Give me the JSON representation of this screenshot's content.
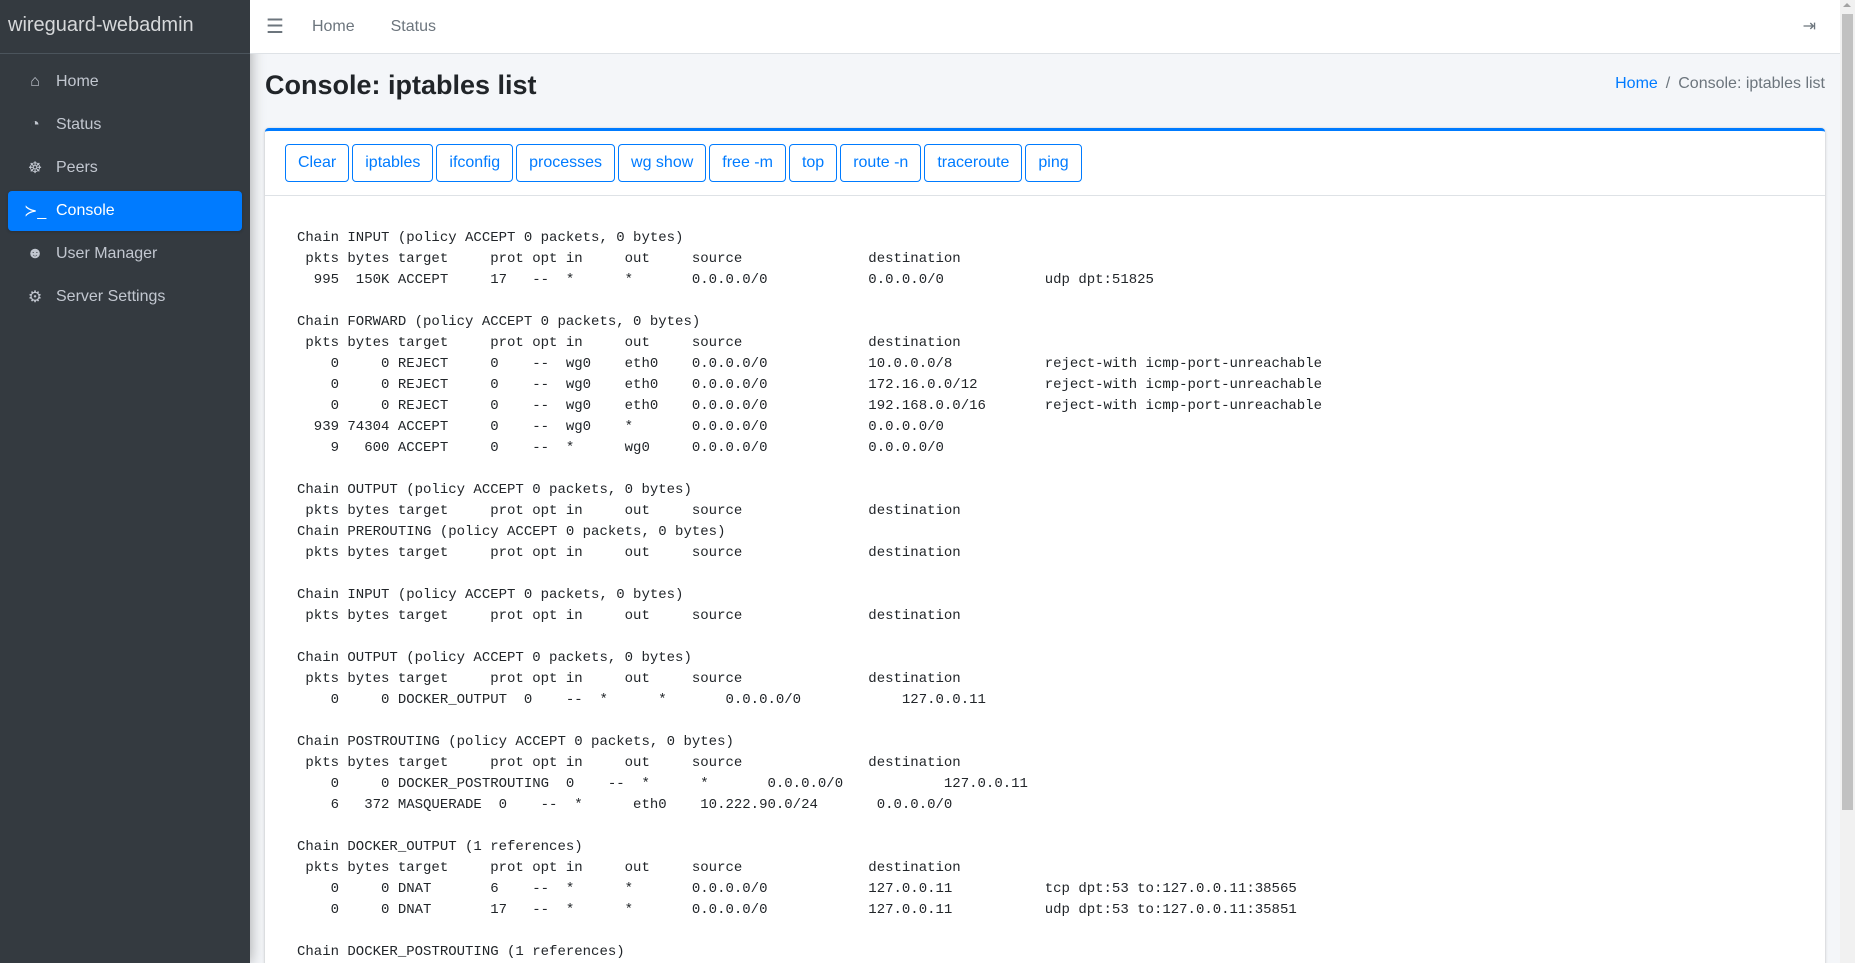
{
  "brand": "wireguard-webadmin",
  "sidebar": {
    "items": [
      {
        "label": "Home",
        "icon": "home-icon",
        "glyph": "⌂"
      },
      {
        "label": "Status",
        "icon": "tachometer-icon",
        "glyph": "◔"
      },
      {
        "label": "Peers",
        "icon": "users-cog-icon",
        "glyph": "☸"
      },
      {
        "label": "Console",
        "icon": "terminal-icon",
        "glyph": "≻_",
        "active": true
      },
      {
        "label": "User Manager",
        "icon": "users-icon",
        "glyph": "☻"
      },
      {
        "label": "Server Settings",
        "icon": "cogs-icon",
        "glyph": "⚙"
      }
    ]
  },
  "topbar": {
    "menu_icon": "☰",
    "links": [
      "Home",
      "Status"
    ],
    "logout_icon": "⇥"
  },
  "page": {
    "title": "Console: iptables list",
    "breadcrumb": {
      "home": "Home",
      "current": "Console: iptables list"
    }
  },
  "buttons": [
    "Clear",
    "iptables",
    "ifconfig",
    "processes",
    "wg show",
    "free -m",
    "top",
    "route -n",
    "traceroute",
    "ping"
  ],
  "console_lines": [
    "Chain INPUT (policy ACCEPT 0 packets, 0 bytes)",
    " pkts bytes target     prot opt in     out     source               destination         ",
    "  995  150K ACCEPT     17   --  *      *       0.0.0.0/0            0.0.0.0/0            udp dpt:51825",
    "",
    "Chain FORWARD (policy ACCEPT 0 packets, 0 bytes)",
    " pkts bytes target     prot opt in     out     source               destination         ",
    "    0     0 REJECT     0    --  wg0    eth0    0.0.0.0/0            10.0.0.0/8           reject-with icmp-port-unreachable",
    "    0     0 REJECT     0    --  wg0    eth0    0.0.0.0/0            172.16.0.0/12        reject-with icmp-port-unreachable",
    "    0     0 REJECT     0    --  wg0    eth0    0.0.0.0/0            192.168.0.0/16       reject-with icmp-port-unreachable",
    "  939 74304 ACCEPT     0    --  wg0    *       0.0.0.0/0            0.0.0.0/0           ",
    "    9   600 ACCEPT     0    --  *      wg0     0.0.0.0/0            0.0.0.0/0           ",
    "",
    "Chain OUTPUT (policy ACCEPT 0 packets, 0 bytes)",
    " pkts bytes target     prot opt in     out     source               destination         ",
    "Chain PREROUTING (policy ACCEPT 0 packets, 0 bytes)",
    " pkts bytes target     prot opt in     out     source               destination         ",
    "",
    "Chain INPUT (policy ACCEPT 0 packets, 0 bytes)",
    " pkts bytes target     prot opt in     out     source               destination         ",
    "",
    "Chain OUTPUT (policy ACCEPT 0 packets, 0 bytes)",
    " pkts bytes target     prot opt in     out     source               destination         ",
    "    0     0 DOCKER_OUTPUT  0    --  *      *       0.0.0.0/0            127.0.0.11          ",
    "",
    "Chain POSTROUTING (policy ACCEPT 0 packets, 0 bytes)",
    " pkts bytes target     prot opt in     out     source               destination         ",
    "    0     0 DOCKER_POSTROUTING  0    --  *      *       0.0.0.0/0            127.0.0.11          ",
    "    6   372 MASQUERADE  0    --  *      eth0    10.222.90.0/24       0.0.0.0/0           ",
    "",
    "Chain DOCKER_OUTPUT (1 references)",
    " pkts bytes target     prot opt in     out     source               destination         ",
    "    0     0 DNAT       6    --  *      *       0.0.0.0/0            127.0.0.11           tcp dpt:53 to:127.0.0.11:38565",
    "    0     0 DNAT       17   --  *      *       0.0.0.0/0            127.0.0.11           udp dpt:53 to:127.0.0.11:35851",
    "",
    "Chain DOCKER_POSTROUTING (1 references)"
  ],
  "colors": {
    "accent": "#007bff",
    "sidebar": "#343a40"
  }
}
